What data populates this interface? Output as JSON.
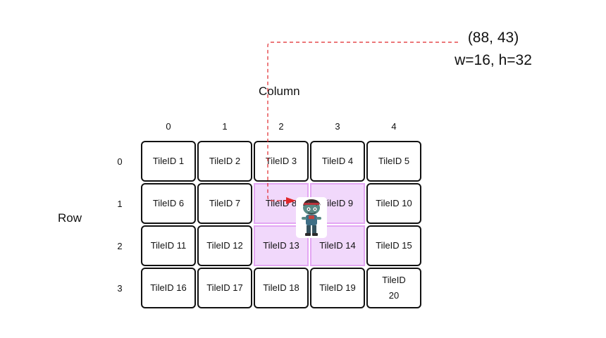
{
  "axis": {
    "column_title": "Column",
    "row_title": "Row",
    "column_indices": [
      "0",
      "1",
      "2",
      "3",
      "4"
    ],
    "row_indices": [
      "0",
      "1",
      "2",
      "3"
    ]
  },
  "tiles": [
    "TileID 1",
    "TileID 2",
    "TileID 3",
    "TileID 4",
    "TileID 5",
    "TileID 6",
    "TileID 7",
    "TileID 8",
    "TileID 9",
    "TileID 10",
    "TileID 11",
    "TileID 12",
    "TileID 13",
    "TileID 14",
    "TileID 15",
    "TileID 16",
    "TileID 17",
    "TileID 18",
    "TileID 19",
    "TileID 20"
  ],
  "highlighted_tiles": [
    "TileID 8",
    "TileID 9",
    "TileID 13",
    "TileID 14"
  ],
  "sprite_info": {
    "position": "(88, 43)",
    "size": "w=16, h=32"
  },
  "colors": {
    "highlight_fill": "#f1d8fb",
    "highlight_border": "#e3a6f3",
    "pointer_line": "#e0262a"
  },
  "icons": {
    "sprite": "zombie-sprite-icon"
  }
}
